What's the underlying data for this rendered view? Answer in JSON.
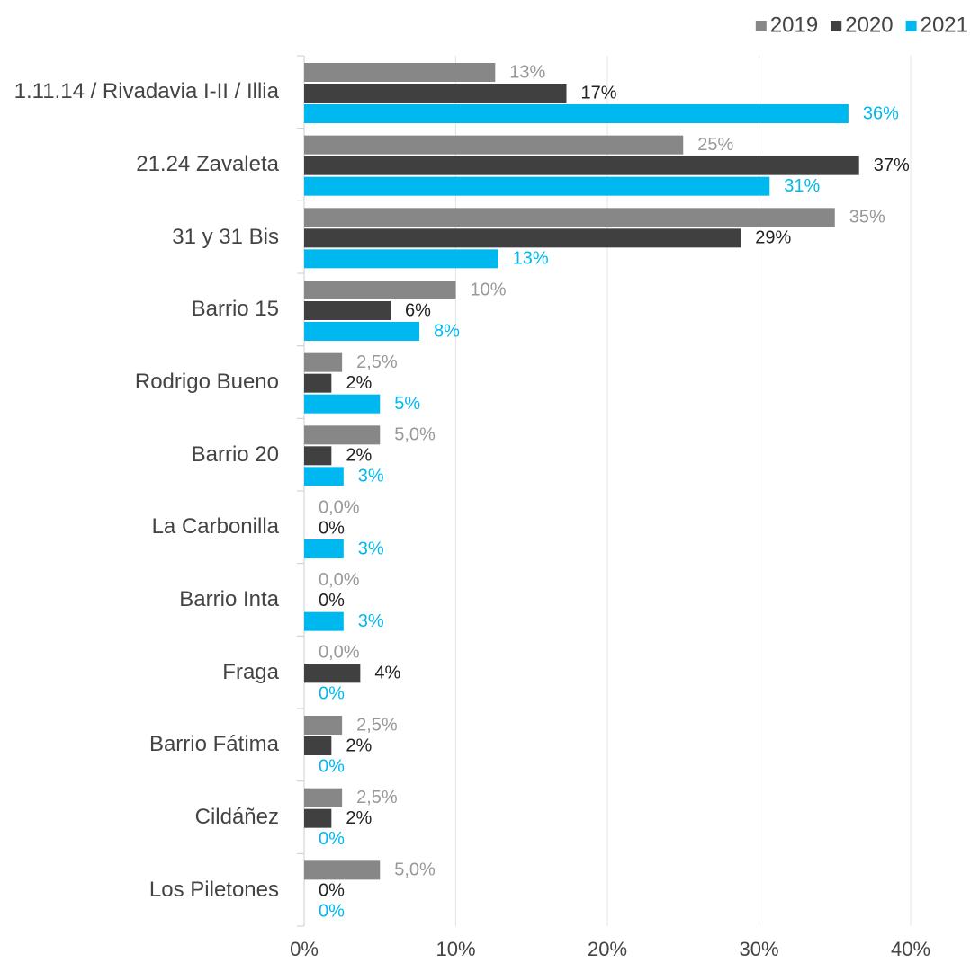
{
  "chart_data": {
    "type": "hbar",
    "categories": [
      "1.11.14 / Rivadavia I-II / Illia",
      "21.24 Zavaleta",
      "31 y 31 Bis",
      "Barrio 15",
      "Rodrigo Bueno",
      "Barrio 20",
      "La Carbonilla",
      "Barrio Inta",
      "Fraga",
      "Barrio Fátima",
      "Cildáñez",
      "Los Piletones"
    ],
    "series": [
      {
        "name": "2019",
        "color": "#878787",
        "values": [
          12.6,
          25,
          35,
          10,
          2.5,
          5,
          0,
          0,
          0,
          2.5,
          2.5,
          5
        ],
        "value_labels": [
          "13%",
          "25%",
          "35%",
          "10%",
          "2,5%",
          "5,0%",
          "0,0%",
          "0,0%",
          "0,0%",
          "2,5%",
          "2,5%",
          "5,0%"
        ]
      },
      {
        "name": "2020",
        "color": "#404040",
        "values": [
          17.3,
          36.6,
          28.8,
          5.7,
          1.8,
          1.8,
          0,
          0,
          3.7,
          1.8,
          1.8,
          0
        ],
        "value_labels": [
          "17%",
          "37%",
          "29%",
          "6%",
          "2%",
          "2%",
          "0%",
          "0%",
          "4%",
          "2%",
          "2%",
          "0%"
        ]
      },
      {
        "name": "2021",
        "color": "#00b8f0",
        "values": [
          35.9,
          30.7,
          12.8,
          7.6,
          5,
          2.6,
          2.6,
          2.6,
          0,
          0,
          0,
          0
        ],
        "value_labels": [
          "36%",
          "31%",
          "13%",
          "8%",
          "5%",
          "3%",
          "3%",
          "3%",
          "0%",
          "0%",
          "0%",
          "0%"
        ]
      }
    ],
    "xlim": [
      0,
      40
    ],
    "xticks": [
      {
        "value": 0,
        "label": "0%"
      },
      {
        "value": 10,
        "label": "10%"
      },
      {
        "value": 20,
        "label": "20%"
      },
      {
        "value": 30,
        "label": "30%"
      },
      {
        "value": 40,
        "label": "40%"
      }
    ],
    "grid": true,
    "legend": "top-right"
  }
}
